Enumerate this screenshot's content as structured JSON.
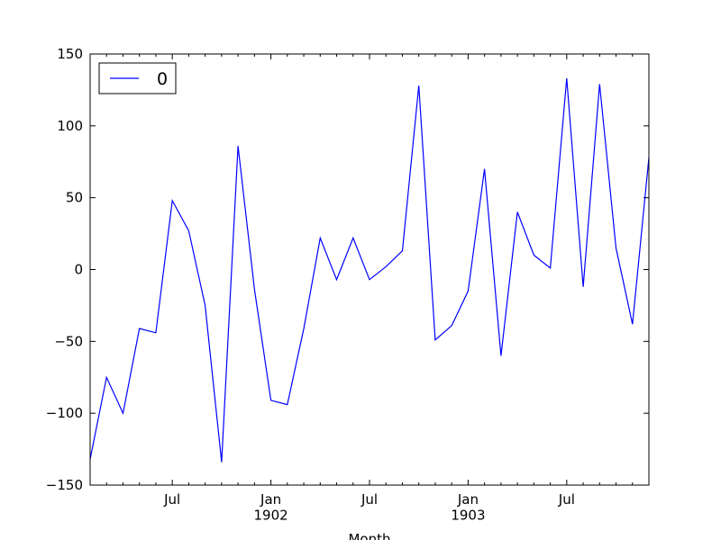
{
  "chart_data": {
    "type": "line",
    "x_label": "Month",
    "categories": [
      null,
      null,
      null,
      null,
      null,
      "Jul",
      null,
      null,
      null,
      null,
      null,
      "Jan\n1902",
      null,
      null,
      null,
      null,
      null,
      "Jul",
      null,
      null,
      null,
      null,
      null,
      "Jan\n1903",
      null,
      null,
      null,
      null,
      null,
      "Jul",
      null,
      null,
      null,
      null,
      null
    ],
    "series": [
      {
        "name": "0",
        "color": "#0000ff",
        "values": [
          -132,
          -75,
          -100,
          -41,
          -44,
          48,
          27,
          -25,
          -134,
          86,
          -14,
          -91,
          -94,
          -41,
          22,
          -7,
          22,
          -7,
          2,
          13,
          128,
          -49,
          -39,
          -15,
          70,
          -60,
          40,
          10,
          1,
          133,
          -12,
          129,
          15,
          -38,
          78
        ]
      }
    ],
    "ylim": [
      -150,
      150
    ],
    "yticks": [
      {
        "value": -150,
        "label": "−150"
      },
      {
        "value": -100,
        "label": "−100"
      },
      {
        "value": -50,
        "label": "−50"
      },
      0,
      50,
      100,
      150
    ],
    "legend": "upper left",
    "grid": false
  }
}
